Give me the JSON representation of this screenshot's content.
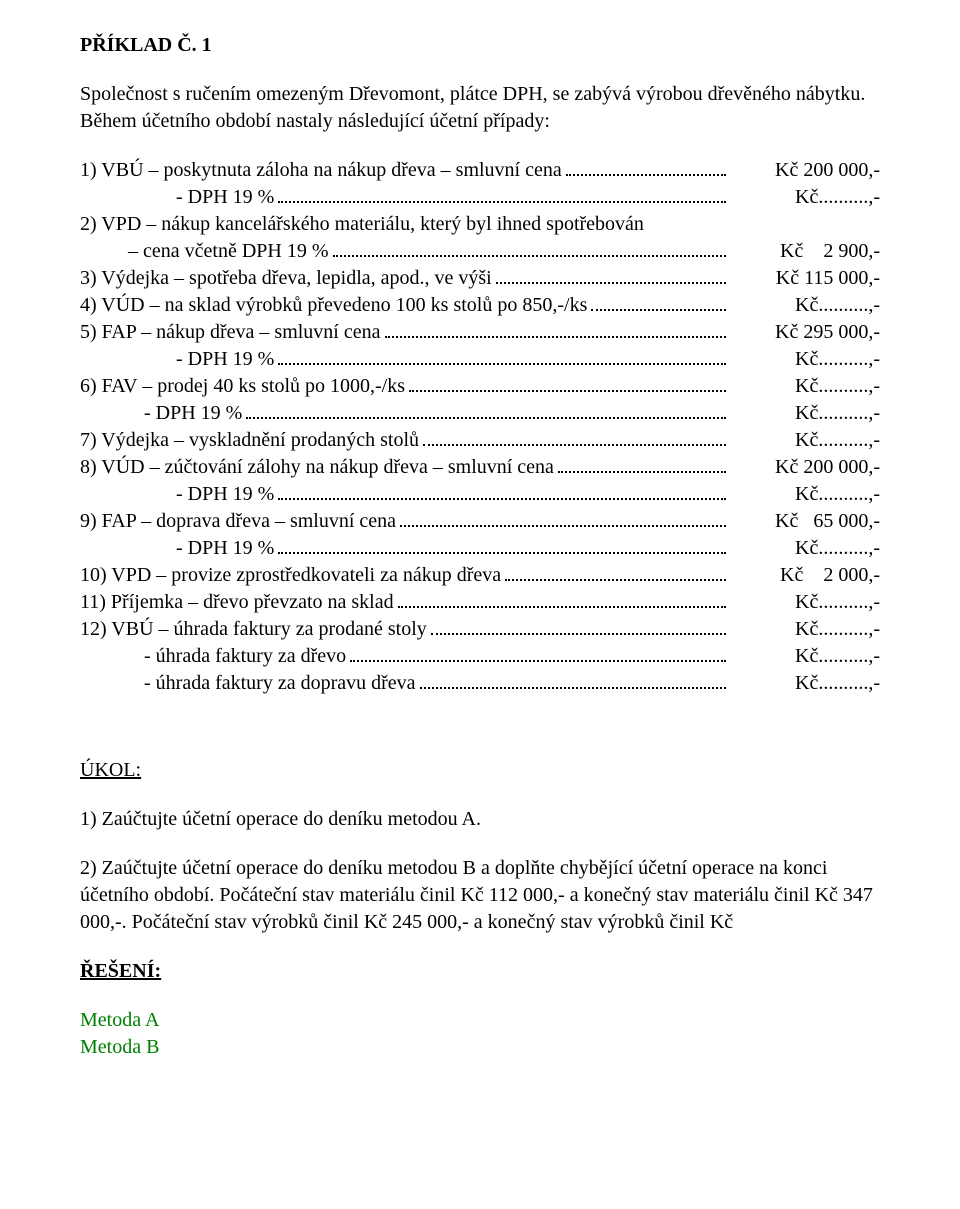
{
  "title": "PŘÍKLAD Č. 1",
  "intro": "Společnost s ručením omezeným Dřevomont, plátce DPH, se zabývá výrobou dřevěného nábytku. Během účetního období nastaly následující účetní případy:",
  "lines": [
    {
      "lead": "1) VBÚ – poskytnuta záloha na nákup dřeva – smluvní cena",
      "amount": "Kč 200 000,-",
      "indent": ""
    },
    {
      "lead": "- DPH 19 %",
      "amount": "Kč..........,-",
      "indent": "indent1"
    },
    {
      "lead": "2) VPD – nákup kancelářského materiálu, který byl ihned spotřebován",
      "amount": "",
      "indent": "",
      "nodots": true
    },
    {
      "lead": "– cena včetně DPH 19 %",
      "amount": "Kč    2 900,-",
      "indent": "indent-small"
    },
    {
      "lead": "3) Výdejka – spotřeba dřeva, lepidla, apod., ve výši",
      "amount": "Kč 115 000,-",
      "indent": ""
    },
    {
      "lead": "4) VÚD – na sklad výrobků převedeno 100 ks stolů po 850,-/ks",
      "amount": "Kč..........,-",
      "indent": ""
    },
    {
      "lead": "5) FAP – nákup dřeva – smluvní cena",
      "amount": "Kč 295 000,-",
      "indent": ""
    },
    {
      "lead": "- DPH 19 %",
      "amount": "Kč..........,-",
      "indent": "indent1"
    },
    {
      "lead": "6) FAV – prodej 40 ks stolů po 1000,-/ks",
      "amount": "Kč..........,-",
      "indent": ""
    },
    {
      "lead": "- DPH 19 %",
      "amount": "Kč..........,-",
      "indent": "indent2"
    },
    {
      "lead": "7) Výdejka – vyskladnění prodaných stolů",
      "amount": "Kč..........,-",
      "indent": ""
    },
    {
      "lead": "8) VÚD – zúčtování zálohy na nákup dřeva – smluvní cena",
      "amount": "Kč 200 000,-",
      "indent": ""
    },
    {
      "lead": "- DPH 19 %",
      "amount": "Kč..........,-",
      "indent": "indent1"
    },
    {
      "lead": "9) FAP – doprava dřeva – smluvní cena",
      "amount": "Kč   65 000,-",
      "indent": ""
    },
    {
      "lead": "- DPH 19 %",
      "amount": "Kč..........,-",
      "indent": "indent1"
    },
    {
      "lead": "10) VPD – provize zprostředkovateli za nákup dřeva",
      "amount": "Kč    2 000,-",
      "indent": ""
    },
    {
      "lead": "11) Příjemka – dřevo převzato na sklad",
      "amount": "Kč..........,-",
      "indent": ""
    },
    {
      "lead": "12) VBÚ – úhrada faktury za prodané stoly",
      "amount": "Kč..........,-",
      "indent": ""
    },
    {
      "lead": "- úhrada faktury za dřevo",
      "amount": "Kč..........,-",
      "indent": "indent2"
    },
    {
      "lead": "- úhrada faktury za dopravu dřeva",
      "amount": "Kč..........,-",
      "indent": "indent2"
    }
  ],
  "task_heading": "ÚKOL:",
  "task1": "1) Zaúčtujte účetní operace do deníku metodou A.",
  "task2": "2) Zaúčtujte účetní operace do deníku metodou B a doplňte chybějící účetní operace na konci účetního období. Počáteční stav materiálu činil Kč 112 000,- a konečný stav materiálu činil Kč 347 000,-. Počáteční stav výrobků činil Kč 245 000,- a konečný stav výrobků činil Kč",
  "solution_heading": "ŘEŠENÍ:",
  "method_a": "Metoda A",
  "method_b": "Metoda B",
  "colors": {
    "text": "#000000",
    "link": "#008000",
    "background": "#ffffff"
  }
}
